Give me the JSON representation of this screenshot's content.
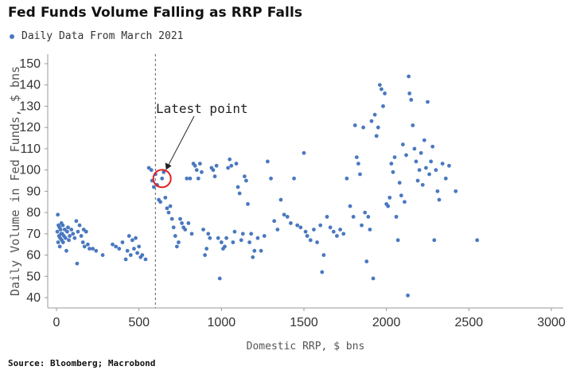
{
  "title": "Fed Funds Volume Falling as RRP Falls",
  "legend": {
    "label": "Daily Data From March 2021"
  },
  "source": "Source: Bloomberg; Macrobond",
  "colors": {
    "series": "#4a78bf",
    "highlight": "#e02020",
    "axis": "#999999"
  },
  "chart_data": {
    "type": "scatter",
    "xlabel": "Domestic RRP, $ bns",
    "ylabel": "Daily Volume in Fed Funds, $ bns",
    "xlim": [
      0,
      3000
    ],
    "ylim": [
      35,
      152
    ],
    "xticks": [
      "0",
      "500",
      "1000",
      "1500",
      "2000",
      "2500",
      "3000"
    ],
    "yticks": [
      "40",
      "50",
      "60",
      "70",
      "80",
      "90",
      "100",
      "110",
      "120",
      "130",
      "140",
      "150"
    ],
    "grid": false,
    "legend_position": "top-left",
    "vertical_line_x": 600,
    "annotation": {
      "text": "Latest point",
      "x": 640,
      "y": 96
    },
    "series": [
      {
        "name": "Daily Data From March 2021",
        "points": [
          [
            5,
            71
          ],
          [
            8,
            79
          ],
          [
            10,
            66
          ],
          [
            12,
            74
          ],
          [
            15,
            69
          ],
          [
            18,
            73
          ],
          [
            20,
            64
          ],
          [
            22,
            68
          ],
          [
            25,
            72
          ],
          [
            28,
            70
          ],
          [
            30,
            75
          ],
          [
            32,
            67
          ],
          [
            35,
            70
          ],
          [
            38,
            74
          ],
          [
            40,
            66
          ],
          [
            45,
            69
          ],
          [
            50,
            72
          ],
          [
            55,
            68
          ],
          [
            60,
            62
          ],
          [
            65,
            71
          ],
          [
            70,
            73
          ],
          [
            75,
            67
          ],
          [
            80,
            69
          ],
          [
            90,
            72
          ],
          [
            100,
            70
          ],
          [
            110,
            68
          ],
          [
            120,
            76
          ],
          [
            125,
            56
          ],
          [
            130,
            71
          ],
          [
            140,
            74
          ],
          [
            150,
            69
          ],
          [
            160,
            66
          ],
          [
            165,
            72
          ],
          [
            170,
            64
          ],
          [
            180,
            71
          ],
          [
            190,
            65
          ],
          [
            200,
            63
          ],
          [
            220,
            63
          ],
          [
            240,
            62
          ],
          [
            280,
            60
          ],
          [
            340,
            65
          ],
          [
            360,
            64
          ],
          [
            380,
            63
          ],
          [
            400,
            66
          ],
          [
            420,
            58
          ],
          [
            430,
            62
          ],
          [
            440,
            69
          ],
          [
            450,
            60
          ],
          [
            460,
            67
          ],
          [
            470,
            63
          ],
          [
            480,
            68
          ],
          [
            490,
            61
          ],
          [
            500,
            64
          ],
          [
            510,
            59
          ],
          [
            520,
            60
          ],
          [
            540,
            58
          ],
          [
            560,
            101
          ],
          [
            575,
            100
          ],
          [
            580,
            95
          ],
          [
            590,
            92
          ],
          [
            600,
            98
          ],
          [
            610,
            93
          ],
          [
            620,
            86
          ],
          [
            630,
            85
          ],
          [
            640,
            96
          ],
          [
            650,
            99
          ],
          [
            660,
            87
          ],
          [
            670,
            82
          ],
          [
            680,
            80
          ],
          [
            690,
            83
          ],
          [
            700,
            77
          ],
          [
            710,
            73
          ],
          [
            720,
            69
          ],
          [
            730,
            64
          ],
          [
            740,
            66
          ],
          [
            750,
            77
          ],
          [
            760,
            75
          ],
          [
            770,
            73
          ],
          [
            780,
            72
          ],
          [
            790,
            96
          ],
          [
            800,
            75
          ],
          [
            810,
            96
          ],
          [
            820,
            70
          ],
          [
            830,
            103
          ],
          [
            840,
            102
          ],
          [
            850,
            100
          ],
          [
            860,
            96
          ],
          [
            870,
            103
          ],
          [
            880,
            99
          ],
          [
            890,
            72
          ],
          [
            900,
            60
          ],
          [
            910,
            63
          ],
          [
            920,
            70
          ],
          [
            930,
            68
          ],
          [
            940,
            101
          ],
          [
            950,
            100
          ],
          [
            960,
            97
          ],
          [
            970,
            102
          ],
          [
            980,
            68
          ],
          [
            990,
            49
          ],
          [
            1000,
            66
          ],
          [
            1010,
            63
          ],
          [
            1020,
            64
          ],
          [
            1030,
            68
          ],
          [
            1040,
            101
          ],
          [
            1050,
            105
          ],
          [
            1060,
            102
          ],
          [
            1070,
            66
          ],
          [
            1080,
            71
          ],
          [
            1090,
            103
          ],
          [
            1100,
            92
          ],
          [
            1110,
            89
          ],
          [
            1120,
            67
          ],
          [
            1130,
            70
          ],
          [
            1140,
            97
          ],
          [
            1150,
            95
          ],
          [
            1160,
            84
          ],
          [
            1170,
            66
          ],
          [
            1180,
            70
          ],
          [
            1190,
            59
          ],
          [
            1200,
            62
          ],
          [
            1220,
            68
          ],
          [
            1240,
            62
          ],
          [
            1260,
            69
          ],
          [
            1280,
            104
          ],
          [
            1300,
            96
          ],
          [
            1320,
            76
          ],
          [
            1340,
            72
          ],
          [
            1360,
            86
          ],
          [
            1380,
            79
          ],
          [
            1400,
            78
          ],
          [
            1420,
            75
          ],
          [
            1440,
            96
          ],
          [
            1460,
            74
          ],
          [
            1480,
            73
          ],
          [
            1500,
            108
          ],
          [
            1510,
            71
          ],
          [
            1520,
            69
          ],
          [
            1540,
            67
          ],
          [
            1560,
            72
          ],
          [
            1580,
            66
          ],
          [
            1600,
            74
          ],
          [
            1610,
            52
          ],
          [
            1620,
            60
          ],
          [
            1640,
            78
          ],
          [
            1660,
            73
          ],
          [
            1680,
            71
          ],
          [
            1700,
            69
          ],
          [
            1720,
            72
          ],
          [
            1740,
            70
          ],
          [
            1760,
            96
          ],
          [
            1780,
            83
          ],
          [
            1800,
            78
          ],
          [
            1810,
            121
          ],
          [
            1820,
            106
          ],
          [
            1830,
            103
          ],
          [
            1840,
            98
          ],
          [
            1850,
            74
          ],
          [
            1860,
            120
          ],
          [
            1870,
            80
          ],
          [
            1880,
            57
          ],
          [
            1890,
            78
          ],
          [
            1900,
            72
          ],
          [
            1910,
            123
          ],
          [
            1920,
            49
          ],
          [
            1930,
            126
          ],
          [
            1940,
            116
          ],
          [
            1950,
            120
          ],
          [
            1960,
            140
          ],
          [
            1970,
            138
          ],
          [
            1980,
            130
          ],
          [
            1990,
            136
          ],
          [
            2000,
            84
          ],
          [
            2010,
            83
          ],
          [
            2020,
            87
          ],
          [
            2030,
            103
          ],
          [
            2040,
            99
          ],
          [
            2050,
            106
          ],
          [
            2060,
            78
          ],
          [
            2070,
            67
          ],
          [
            2080,
            94
          ],
          [
            2090,
            88
          ],
          [
            2100,
            112
          ],
          [
            2110,
            85
          ],
          [
            2120,
            107
          ],
          [
            2130,
            41
          ],
          [
            2135,
            144
          ],
          [
            2140,
            136
          ],
          [
            2150,
            133
          ],
          [
            2160,
            121
          ],
          [
            2170,
            110
          ],
          [
            2180,
            104
          ],
          [
            2190,
            95
          ],
          [
            2200,
            100
          ],
          [
            2210,
            108
          ],
          [
            2220,
            93
          ],
          [
            2230,
            114
          ],
          [
            2240,
            101
          ],
          [
            2250,
            132
          ],
          [
            2260,
            98
          ],
          [
            2270,
            104
          ],
          [
            2280,
            111
          ],
          [
            2290,
            67
          ],
          [
            2300,
            100
          ],
          [
            2310,
            90
          ],
          [
            2320,
            86
          ],
          [
            2340,
            103
          ],
          [
            2360,
            96
          ],
          [
            2380,
            102
          ],
          [
            2420,
            90
          ],
          [
            2550,
            67
          ]
        ]
      }
    ]
  }
}
